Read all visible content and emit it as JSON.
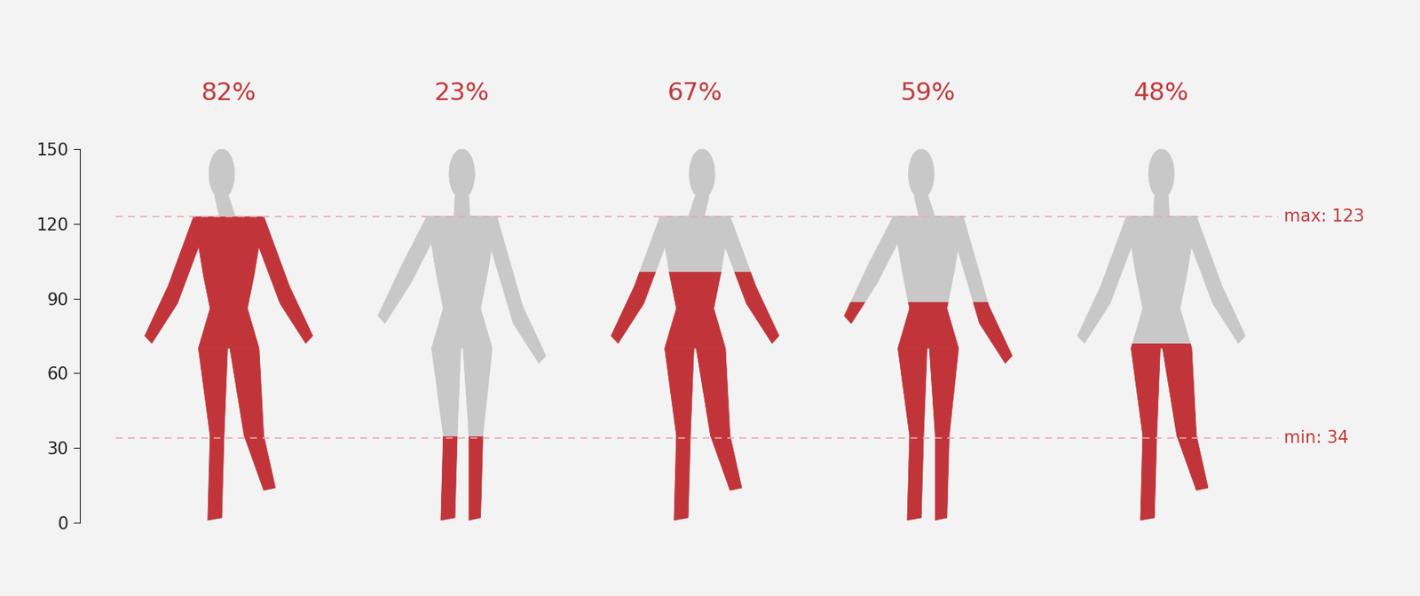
{
  "chart_data": {
    "type": "pictogram",
    "categories": [
      null,
      null,
      null,
      null,
      null
    ],
    "values": [
      82,
      23,
      67,
      59,
      48
    ],
    "value_labels": [
      "82%",
      "23%",
      "67%",
      "59%",
      "48%"
    ],
    "data_labels": true,
    "color": "#c1353a",
    "ylim": [
      0,
      150
    ],
    "yticks": [
      0,
      30,
      60,
      90,
      120,
      150
    ],
    "y2lim": [
      0,
      100
    ],
    "tick_labels": "y",
    "reference_lines": [
      {
        "value": 123,
        "label": "max: 123"
      },
      {
        "value": 34,
        "label": "min: 34"
      }
    ]
  }
}
